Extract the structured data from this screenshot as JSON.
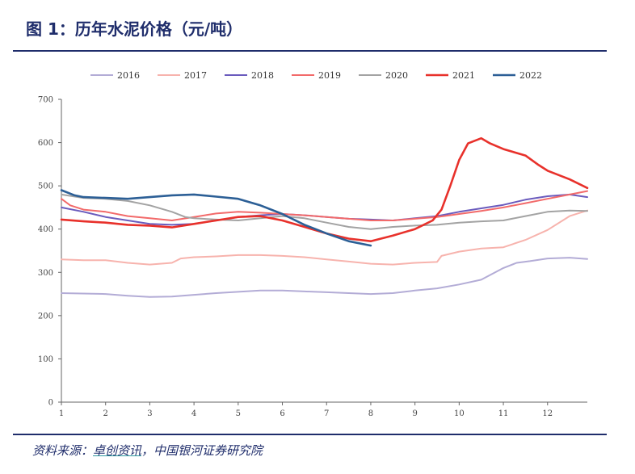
{
  "figure": {
    "title": "图 1：历年水泥价格（元/吨）",
    "source_prefix": "资料来源：",
    "source_link": "卓创资讯",
    "source_suffix": "，中国银河证券研究院"
  },
  "chart_data": {
    "type": "line",
    "title": "",
    "xlabel": "",
    "ylabel": "",
    "xlim": [
      1,
      12.9
    ],
    "ylim": [
      0,
      700
    ],
    "yticks": [
      0,
      100,
      200,
      300,
      400,
      500,
      600,
      700
    ],
    "xticks": [
      1,
      2,
      3,
      4,
      5,
      6,
      7,
      8,
      9,
      10,
      11,
      12
    ],
    "legend_position": "top",
    "grid": false,
    "series": [
      {
        "name": "2016",
        "color": "#b3acd6",
        "width": 2,
        "points": [
          [
            1,
            252
          ],
          [
            2,
            250
          ],
          [
            2.5,
            246
          ],
          [
            3,
            243
          ],
          [
            3.5,
            244
          ],
          [
            4,
            248
          ],
          [
            4.5,
            252
          ],
          [
            5,
            255
          ],
          [
            5.5,
            258
          ],
          [
            6,
            258
          ],
          [
            6.5,
            256
          ],
          [
            7,
            254
          ],
          [
            7.5,
            252
          ],
          [
            8,
            250
          ],
          [
            8.5,
            252
          ],
          [
            9,
            258
          ],
          [
            9.5,
            263
          ],
          [
            10,
            272
          ],
          [
            10.5,
            283
          ],
          [
            11,
            310
          ],
          [
            11.3,
            322
          ],
          [
            11.6,
            326
          ],
          [
            12,
            332
          ],
          [
            12.5,
            334
          ],
          [
            12.9,
            331
          ]
        ]
      },
      {
        "name": "2017",
        "color": "#f7b3ad",
        "width": 2,
        "points": [
          [
            1,
            330
          ],
          [
            1.5,
            328
          ],
          [
            2,
            328
          ],
          [
            2.5,
            322
          ],
          [
            3,
            318
          ],
          [
            3.5,
            322
          ],
          [
            3.7,
            332
          ],
          [
            4,
            335
          ],
          [
            4.5,
            337
          ],
          [
            5,
            340
          ],
          [
            5.5,
            340
          ],
          [
            6,
            338
          ],
          [
            6.5,
            335
          ],
          [
            7,
            330
          ],
          [
            7.5,
            325
          ],
          [
            8,
            320
          ],
          [
            8.5,
            318
          ],
          [
            9,
            322
          ],
          [
            9.5,
            324
          ],
          [
            9.6,
            338
          ],
          [
            10,
            348
          ],
          [
            10.5,
            355
          ],
          [
            11,
            358
          ],
          [
            11.5,
            375
          ],
          [
            12,
            398
          ],
          [
            12.5,
            430
          ],
          [
            12.9,
            443
          ]
        ]
      },
      {
        "name": "2018",
        "color": "#6a5bbd",
        "width": 2,
        "points": [
          [
            1,
            450
          ],
          [
            1.5,
            440
          ],
          [
            2,
            428
          ],
          [
            2.5,
            420
          ],
          [
            3,
            412
          ],
          [
            3.5,
            410
          ],
          [
            4,
            412
          ],
          [
            4.5,
            420
          ],
          [
            5,
            428
          ],
          [
            5.5,
            432
          ],
          [
            6,
            435
          ],
          [
            6.5,
            432
          ],
          [
            7,
            428
          ],
          [
            7.5,
            424
          ],
          [
            8,
            422
          ],
          [
            8.5,
            420
          ],
          [
            9,
            425
          ],
          [
            9.5,
            430
          ],
          [
            10,
            440
          ],
          [
            10.5,
            448
          ],
          [
            11,
            456
          ],
          [
            11.5,
            468
          ],
          [
            12,
            476
          ],
          [
            12.5,
            480
          ],
          [
            12.9,
            474
          ]
        ]
      },
      {
        "name": "2019",
        "color": "#f26a6a",
        "width": 2,
        "points": [
          [
            1,
            470
          ],
          [
            1.2,
            455
          ],
          [
            1.5,
            445
          ],
          [
            2,
            440
          ],
          [
            2.5,
            430
          ],
          [
            3,
            425
          ],
          [
            3.5,
            420
          ],
          [
            4,
            428
          ],
          [
            4.5,
            436
          ],
          [
            5,
            440
          ],
          [
            5.5,
            438
          ],
          [
            6,
            435
          ],
          [
            6.5,
            432
          ],
          [
            7,
            428
          ],
          [
            7.5,
            424
          ],
          [
            8,
            420
          ],
          [
            8.5,
            420
          ],
          [
            9,
            424
          ],
          [
            9.5,
            428
          ],
          [
            10,
            435
          ],
          [
            10.5,
            442
          ],
          [
            11,
            450
          ],
          [
            11.5,
            460
          ],
          [
            12,
            470
          ],
          [
            12.5,
            480
          ],
          [
            12.9,
            488
          ]
        ]
      },
      {
        "name": "2020",
        "color": "#a3a3a3",
        "width": 2,
        "points": [
          [
            1,
            480
          ],
          [
            1.5,
            472
          ],
          [
            2,
            470
          ],
          [
            2.5,
            465
          ],
          [
            3,
            455
          ],
          [
            3.5,
            440
          ],
          [
            3.8,
            428
          ],
          [
            4,
            425
          ],
          [
            4.5,
            422
          ],
          [
            5,
            420
          ],
          [
            5.5,
            425
          ],
          [
            6,
            430
          ],
          [
            6.5,
            425
          ],
          [
            7,
            415
          ],
          [
            7.5,
            405
          ],
          [
            8,
            400
          ],
          [
            8.5,
            405
          ],
          [
            9,
            408
          ],
          [
            9.5,
            410
          ],
          [
            10,
            415
          ],
          [
            10.5,
            418
          ],
          [
            11,
            420
          ],
          [
            11.5,
            430
          ],
          [
            12,
            440
          ],
          [
            12.5,
            443
          ],
          [
            12.9,
            442
          ]
        ]
      },
      {
        "name": "2021",
        "color": "#e8312b",
        "width": 2.6,
        "points": [
          [
            1,
            422
          ],
          [
            1.5,
            418
          ],
          [
            2,
            415
          ],
          [
            2.5,
            410
          ],
          [
            3,
            408
          ],
          [
            3.5,
            404
          ],
          [
            4,
            412
          ],
          [
            4.5,
            420
          ],
          [
            5,
            428
          ],
          [
            5.5,
            430
          ],
          [
            6,
            420
          ],
          [
            6.5,
            405
          ],
          [
            7,
            390
          ],
          [
            7.5,
            378
          ],
          [
            8,
            372
          ],
          [
            8.5,
            385
          ],
          [
            9,
            400
          ],
          [
            9.4,
            420
          ],
          [
            9.6,
            445
          ],
          [
            9.8,
            500
          ],
          [
            10,
            560
          ],
          [
            10.2,
            598
          ],
          [
            10.5,
            610
          ],
          [
            10.7,
            598
          ],
          [
            11,
            585
          ],
          [
            11.5,
            570
          ],
          [
            11.8,
            548
          ],
          [
            12,
            535
          ],
          [
            12.5,
            515
          ],
          [
            12.9,
            495
          ]
        ]
      },
      {
        "name": "2022",
        "color": "#2c5f96",
        "width": 2.6,
        "points": [
          [
            1,
            490
          ],
          [
            1.3,
            478
          ],
          [
            1.5,
            474
          ],
          [
            2,
            472
          ],
          [
            2.5,
            470
          ],
          [
            3,
            474
          ],
          [
            3.5,
            478
          ],
          [
            4,
            480
          ],
          [
            4.5,
            475
          ],
          [
            5,
            470
          ],
          [
            5.5,
            455
          ],
          [
            6,
            435
          ],
          [
            6.5,
            410
          ],
          [
            7,
            390
          ],
          [
            7.5,
            372
          ],
          [
            8,
            362
          ]
        ]
      }
    ]
  }
}
